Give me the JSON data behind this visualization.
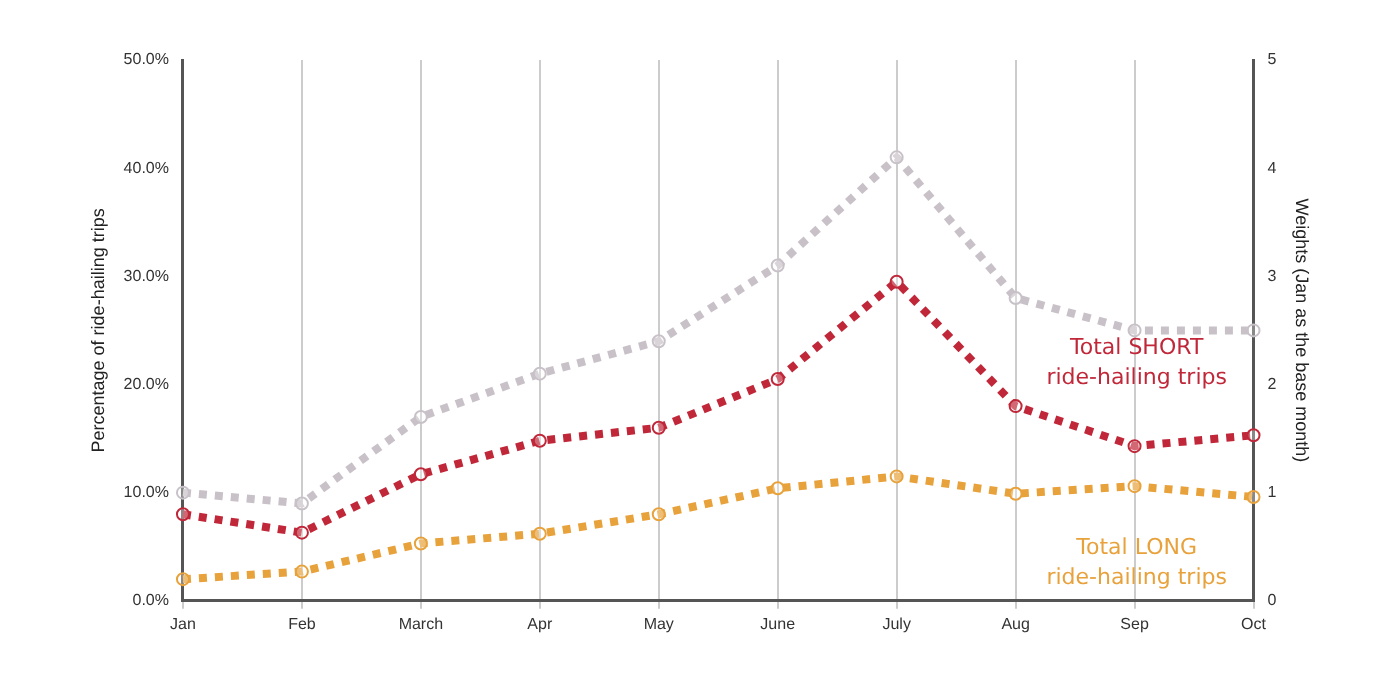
{
  "chart_data": {
    "type": "line",
    "categories": [
      "Jan",
      "Feb",
      "March",
      "Apr",
      "May",
      "June",
      "July",
      "Aug",
      "Sep",
      "Oct"
    ],
    "ylabel": "Percentage of ride-hailing trips",
    "y2label": "Weights (Jan as the base month)",
    "ylim": [
      0,
      50
    ],
    "yticks": [
      {
        "value": 0,
        "label": "0.0%"
      },
      {
        "value": 10,
        "label": "10.0%"
      },
      {
        "value": 20,
        "label": "20.0%"
      },
      {
        "value": 30,
        "label": "30.0%"
      },
      {
        "value": 40,
        "label": "40.0%"
      },
      {
        "value": 50,
        "label": "50.0%"
      }
    ],
    "y2lim": [
      0,
      5
    ],
    "y2ticks": [
      0,
      1,
      2,
      3,
      4,
      5
    ],
    "grid": "x",
    "legend": false,
    "marker": "circle",
    "line_style": "dotted",
    "series": [
      {
        "color": "#c8c2c8",
        "axis": "y2",
        "values": [
          1,
          0.9,
          1.7,
          2.1,
          2.4,
          3.1,
          4.1,
          2.8,
          2.5,
          2.5
        ]
      },
      {
        "name": "Total SHORT ride-hailing trips",
        "color": "#c0283a",
        "values": [
          8,
          6.3,
          11.7,
          14.8,
          16,
          20.5,
          29.5,
          18,
          14.3,
          15.3
        ]
      },
      {
        "name": "Total LONG ride-hailing trips",
        "color": "#e8a23c",
        "values": [
          2,
          2.7,
          5.3,
          6.2,
          8,
          10.4,
          11.5,
          9.9,
          10.6,
          9.6
        ]
      }
    ]
  }
}
